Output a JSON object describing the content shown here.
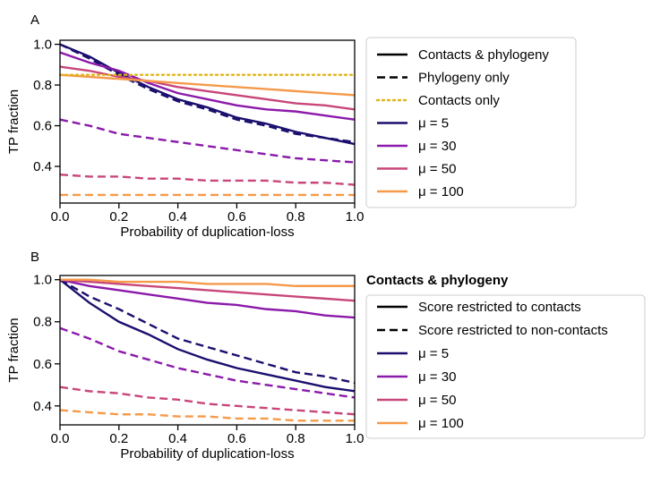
{
  "chart_data": [
    {
      "panel_label": "A",
      "type": "line",
      "xlabel": "Probability of duplication-loss",
      "ylabel": "TP fraction",
      "xlim": [
        0,
        1
      ],
      "ylim": [
        0.22,
        1.02
      ],
      "xticks": [
        0.0,
        0.2,
        0.4,
        0.6,
        0.8,
        1.0
      ],
      "xtick_labels": [
        "0.0",
        "0.2",
        "0.4",
        "0.6",
        "0.8",
        "1.0"
      ],
      "yticks": [
        0.4,
        0.6,
        0.8,
        1.0
      ],
      "ytick_labels": [
        "0.4",
        "0.6",
        "0.8",
        "1.0"
      ],
      "legend_position": "right",
      "legend": [
        {
          "label": "Contacts & phylogeny",
          "color": "#000000",
          "style": "solid"
        },
        {
          "label": "Phylogeny only",
          "color": "#000000",
          "style": "dashed"
        },
        {
          "label": "Contacts only",
          "color": "#e0b416",
          "style": "dotted"
        },
        {
          "label": "μ = 5",
          "color": "#1a0f6e",
          "style": "solid"
        },
        {
          "label": "μ = 30",
          "color": "#8b1aaa",
          "style": "solid"
        },
        {
          "label": "μ = 50",
          "color": "#c8467a",
          "style": "solid"
        },
        {
          "label": "μ = 100",
          "color": "#f59a4a",
          "style": "solid"
        }
      ],
      "x": [
        0.0,
        0.1,
        0.2,
        0.3,
        0.4,
        0.5,
        0.6,
        0.7,
        0.8,
        0.9,
        1.0
      ],
      "series": [
        {
          "name": "μ = 5, Contacts & phylogeny",
          "color": "#1a0f6e",
          "style": "solid",
          "values": [
            1.0,
            0.94,
            0.86,
            0.79,
            0.73,
            0.69,
            0.64,
            0.61,
            0.57,
            0.54,
            0.51
          ]
        },
        {
          "name": "μ = 5, Phylogeny only",
          "color": "#1a0f6e",
          "style": "dashed",
          "values": [
            1.0,
            0.93,
            0.85,
            0.78,
            0.72,
            0.68,
            0.63,
            0.6,
            0.56,
            0.54,
            0.52
          ]
        },
        {
          "name": "μ = 30, Contacts & phylogeny",
          "color": "#8b1aaa",
          "style": "solid",
          "values": [
            0.96,
            0.91,
            0.87,
            0.81,
            0.76,
            0.73,
            0.7,
            0.68,
            0.67,
            0.65,
            0.63
          ]
        },
        {
          "name": "μ = 30, Phylogeny only",
          "color": "#8b1aaa",
          "style": "dashed",
          "values": [
            0.63,
            0.6,
            0.56,
            0.54,
            0.52,
            0.5,
            0.48,
            0.46,
            0.44,
            0.43,
            0.42
          ]
        },
        {
          "name": "μ = 50, Contacts & phylogeny",
          "color": "#c8467a",
          "style": "solid",
          "values": [
            0.89,
            0.87,
            0.84,
            0.82,
            0.79,
            0.77,
            0.75,
            0.73,
            0.71,
            0.7,
            0.68
          ]
        },
        {
          "name": "μ = 50, Phylogeny only",
          "color": "#c8467a",
          "style": "dashed",
          "values": [
            0.36,
            0.35,
            0.35,
            0.34,
            0.34,
            0.33,
            0.33,
            0.33,
            0.32,
            0.32,
            0.31
          ]
        },
        {
          "name": "μ = 100, Contacts & phylogeny",
          "color": "#f59a4a",
          "style": "solid",
          "values": [
            0.85,
            0.84,
            0.83,
            0.82,
            0.81,
            0.8,
            0.79,
            0.78,
            0.77,
            0.76,
            0.75
          ]
        },
        {
          "name": "μ = 100, Phylogeny only",
          "color": "#f59a4a",
          "style": "dashed",
          "values": [
            0.26,
            0.26,
            0.26,
            0.26,
            0.26,
            0.26,
            0.26,
            0.26,
            0.26,
            0.26,
            0.26
          ]
        },
        {
          "name": "Contacts only",
          "color": "#e0b416",
          "style": "dotted",
          "values": [
            0.85,
            0.85,
            0.85,
            0.85,
            0.85,
            0.85,
            0.85,
            0.85,
            0.85,
            0.85,
            0.85
          ]
        }
      ]
    },
    {
      "panel_label": "B",
      "type": "line",
      "xlabel": "Probability of duplication-loss",
      "ylabel": "TP fraction",
      "xlim": [
        0,
        1
      ],
      "ylim": [
        0.31,
        1.02
      ],
      "xticks": [
        0.0,
        0.2,
        0.4,
        0.6,
        0.8,
        1.0
      ],
      "xtick_labels": [
        "0.0",
        "0.2",
        "0.4",
        "0.6",
        "0.8",
        "1.0"
      ],
      "yticks": [
        0.4,
        0.6,
        0.8,
        1.0
      ],
      "ytick_labels": [
        "0.4",
        "0.6",
        "0.8",
        "1.0"
      ],
      "legend_position": "right",
      "legend_title": "Contacts & phylogeny",
      "legend": [
        {
          "label": "Score restricted to contacts",
          "color": "#000000",
          "style": "solid"
        },
        {
          "label": "Score restricted to non-contacts",
          "color": "#000000",
          "style": "dashed"
        },
        {
          "label": "μ = 5",
          "color": "#1a0f6e",
          "style": "solid"
        },
        {
          "label": "μ = 30",
          "color": "#8b1aaa",
          "style": "solid"
        },
        {
          "label": "μ = 50",
          "color": "#c8467a",
          "style": "solid"
        },
        {
          "label": "μ = 100",
          "color": "#f59a4a",
          "style": "solid"
        }
      ],
      "x": [
        0.0,
        0.1,
        0.2,
        0.3,
        0.4,
        0.5,
        0.6,
        0.7,
        0.8,
        0.9,
        1.0
      ],
      "series": [
        {
          "name": "μ = 5, contacts",
          "color": "#1a0f6e",
          "style": "solid",
          "values": [
            1.0,
            0.89,
            0.8,
            0.74,
            0.67,
            0.62,
            0.58,
            0.55,
            0.52,
            0.49,
            0.47
          ]
        },
        {
          "name": "μ = 5, non-contacts",
          "color": "#1a0f6e",
          "style": "dashed",
          "values": [
            1.0,
            0.92,
            0.86,
            0.79,
            0.72,
            0.68,
            0.64,
            0.6,
            0.56,
            0.54,
            0.51
          ]
        },
        {
          "name": "μ = 30, contacts",
          "color": "#8b1aaa",
          "style": "solid",
          "values": [
            1.0,
            0.97,
            0.95,
            0.93,
            0.91,
            0.89,
            0.88,
            0.86,
            0.85,
            0.83,
            0.82
          ]
        },
        {
          "name": "μ = 30, non-contacts",
          "color": "#8b1aaa",
          "style": "dashed",
          "values": [
            0.77,
            0.72,
            0.66,
            0.62,
            0.58,
            0.55,
            0.52,
            0.5,
            0.48,
            0.46,
            0.44
          ]
        },
        {
          "name": "μ = 50, contacts",
          "color": "#c8467a",
          "style": "solid",
          "values": [
            1.0,
            0.99,
            0.98,
            0.97,
            0.96,
            0.95,
            0.94,
            0.93,
            0.92,
            0.91,
            0.9
          ]
        },
        {
          "name": "μ = 50, non-contacts",
          "color": "#c8467a",
          "style": "dashed",
          "values": [
            0.49,
            0.47,
            0.46,
            0.44,
            0.43,
            0.41,
            0.4,
            0.39,
            0.38,
            0.37,
            0.36
          ]
        },
        {
          "name": "μ = 100, contacts",
          "color": "#f59a4a",
          "style": "solid",
          "values": [
            1.0,
            1.0,
            0.99,
            0.99,
            0.99,
            0.98,
            0.98,
            0.98,
            0.97,
            0.97,
            0.97
          ]
        },
        {
          "name": "μ = 100, non-contacts",
          "color": "#f59a4a",
          "style": "dashed",
          "values": [
            0.38,
            0.37,
            0.36,
            0.36,
            0.35,
            0.35,
            0.34,
            0.34,
            0.33,
            0.33,
            0.33
          ]
        }
      ]
    }
  ]
}
